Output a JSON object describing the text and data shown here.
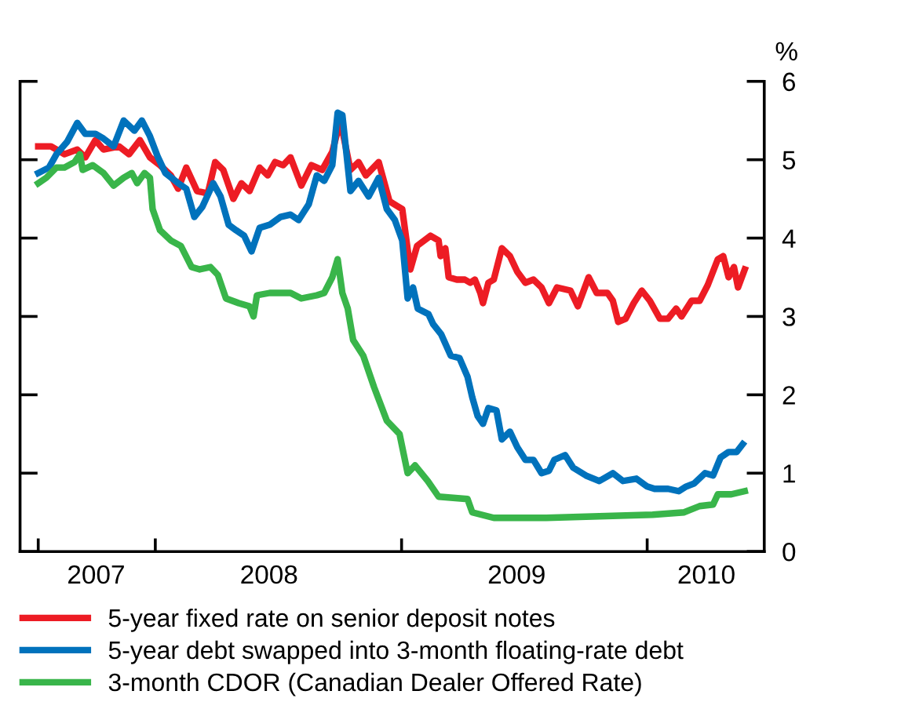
{
  "chart_data": {
    "type": "line",
    "ylabel": "%",
    "xlim": [
      "2007-06-14",
      "2010-06-24"
    ],
    "ylim": [
      0,
      6
    ],
    "yticks": [
      0,
      1,
      2,
      3,
      4,
      5,
      6
    ],
    "xticks": [
      {
        "value": "2007-07-11",
        "label": null
      },
      {
        "value": "2008-01-01",
        "label": null
      },
      {
        "value": "2009-01-01",
        "label": null
      },
      {
        "value": "2010-01-01",
        "label": null
      },
      {
        "value": "2007-10-05",
        "label": "2007"
      },
      {
        "value": "2008-06-18",
        "label": "2008"
      },
      {
        "value": "2009-06-21",
        "label": "2009"
      },
      {
        "value": "2010-03-30",
        "label": "2010"
      }
    ],
    "grid": false,
    "legend": "bottom",
    "marker": "none",
    "line_style": "solid",
    "series": [
      {
        "name": "5-year fixed rate on senior deposit notes",
        "color": "#ed1c24",
        "x": [
          "2007-07-11",
          "2007-07-30",
          "2007-08-19",
          "2007-09-07",
          "2007-09-19",
          "2007-10-04",
          "2007-10-16",
          "2007-11-08",
          "2007-11-23",
          "2007-12-09",
          "2007-12-24",
          "2008-01-08",
          "2008-01-24",
          "2008-02-04",
          "2008-02-16",
          "2008-03-03",
          "2008-03-19",
          "2008-03-30",
          "2008-04-11",
          "2008-04-26",
          "2008-05-08",
          "2008-05-20",
          "2008-06-04",
          "2008-06-16",
          "2008-06-27",
          "2008-07-09",
          "2008-07-20",
          "2008-08-05",
          "2008-08-20",
          "2008-09-05",
          "2008-09-20",
          "2008-10-02",
          "2008-10-17",
          "2008-10-29",
          "2008-11-09",
          "2008-11-28",
          "2008-12-14",
          "2009-01-02",
          "2009-01-14",
          "2009-01-24",
          "2009-02-13",
          "2009-02-25",
          "2009-02-28",
          "2009-03-07",
          "2009-03-12",
          "2009-03-24",
          "2009-04-05",
          "2009-04-13",
          "2009-04-20",
          "2009-04-28",
          "2009-05-02",
          "2009-05-10",
          "2009-05-18",
          "2009-05-30",
          "2009-06-11",
          "2009-06-22",
          "2009-07-04",
          "2009-07-16",
          "2009-07-28",
          "2009-08-08",
          "2009-08-20",
          "2009-09-09",
          "2009-09-20",
          "2009-10-06",
          "2009-10-18",
          "2009-11-03",
          "2009-11-11",
          "2009-11-19",
          "2009-11-30",
          "2009-12-12",
          "2009-12-24",
          "2010-01-05",
          "2010-01-20",
          "2010-02-01",
          "2010-02-13",
          "2010-02-21",
          "2010-03-08",
          "2010-03-20",
          "2010-04-01",
          "2010-04-16",
          "2010-04-24",
          "2010-05-02",
          "2010-05-10",
          "2010-05-16",
          "2010-05-26"
        ],
        "values": [
          5.17,
          5.17,
          5.07,
          5.13,
          5.03,
          5.25,
          5.13,
          5.17,
          5.07,
          5.25,
          5.03,
          4.93,
          4.8,
          4.63,
          4.9,
          4.6,
          4.57,
          4.97,
          4.87,
          4.5,
          4.7,
          4.6,
          4.9,
          4.8,
          4.97,
          4.93,
          5.03,
          4.67,
          4.93,
          4.87,
          5.1,
          5.5,
          4.87,
          4.97,
          4.8,
          4.97,
          4.47,
          4.37,
          3.6,
          3.9,
          4.03,
          3.97,
          3.77,
          3.87,
          3.5,
          3.47,
          3.47,
          3.43,
          3.47,
          3.3,
          3.17,
          3.43,
          3.47,
          3.87,
          3.77,
          3.57,
          3.43,
          3.47,
          3.37,
          3.17,
          3.37,
          3.33,
          3.13,
          3.5,
          3.3,
          3.3,
          3.2,
          2.93,
          2.97,
          3.17,
          3.33,
          3.2,
          2.97,
          2.97,
          3.1,
          3.0,
          3.2,
          3.2,
          3.4,
          3.73,
          3.77,
          3.5,
          3.63,
          3.37,
          3.6
        ]
      },
      {
        "name": "5-year debt swapped into 3-month floating-rate debt",
        "color": "#0072bc",
        "x": [
          "2007-07-11",
          "2007-07-27",
          "2007-08-07",
          "2007-08-23",
          "2007-09-07",
          "2007-09-19",
          "2007-10-04",
          "2007-10-16",
          "2007-10-31",
          "2007-11-15",
          "2007-12-01",
          "2007-12-12",
          "2007-12-24",
          "2008-01-05",
          "2008-01-16",
          "2008-02-04",
          "2008-02-16",
          "2008-02-28",
          "2008-03-11",
          "2008-03-27",
          "2008-04-07",
          "2008-04-19",
          "2008-04-30",
          "2008-05-12",
          "2008-05-23",
          "2008-06-04",
          "2008-06-19",
          "2008-07-05",
          "2008-07-20",
          "2008-08-01",
          "2008-08-16",
          "2008-08-28",
          "2008-09-08",
          "2008-09-20",
          "2008-09-28",
          "2008-10-05",
          "2008-10-17",
          "2008-10-29",
          "2008-11-13",
          "2008-11-28",
          "2008-12-10",
          "2008-12-22",
          "2009-01-02",
          "2009-01-10",
          "2009-01-18",
          "2009-01-25",
          "2009-02-10",
          "2009-02-17",
          "2009-03-01",
          "2009-03-15",
          "2009-03-28",
          "2009-04-09",
          "2009-04-16",
          "2009-04-24",
          "2009-05-02",
          "2009-05-10",
          "2009-05-22",
          "2009-05-30",
          "2009-06-11",
          "2009-06-22",
          "2009-07-04",
          "2009-07-16",
          "2009-07-28",
          "2009-08-08",
          "2009-08-16",
          "2009-09-01",
          "2009-09-13",
          "2009-10-02",
          "2009-10-22",
          "2009-11-11",
          "2009-11-26",
          "2009-12-16",
          "2010-01-01",
          "2010-01-12",
          "2010-02-01",
          "2010-02-17",
          "2010-02-28",
          "2010-03-12",
          "2010-03-28",
          "2010-04-09",
          "2010-04-20",
          "2010-05-02",
          "2010-05-14",
          "2010-05-23"
        ],
        "values": [
          4.83,
          4.9,
          5.07,
          5.23,
          5.47,
          5.33,
          5.33,
          5.27,
          5.17,
          5.5,
          5.37,
          5.5,
          5.3,
          5.03,
          4.83,
          4.7,
          4.63,
          4.27,
          4.4,
          4.7,
          4.53,
          4.17,
          4.1,
          4.03,
          3.83,
          4.13,
          4.17,
          4.27,
          4.3,
          4.23,
          4.43,
          4.8,
          4.73,
          4.93,
          5.6,
          5.57,
          4.6,
          4.73,
          4.53,
          4.77,
          4.37,
          4.23,
          3.97,
          3.23,
          3.37,
          3.1,
          3.03,
          2.9,
          2.77,
          2.5,
          2.47,
          2.23,
          1.97,
          1.73,
          1.63,
          1.83,
          1.8,
          1.43,
          1.53,
          1.33,
          1.17,
          1.17,
          1.0,
          1.03,
          1.17,
          1.23,
          1.07,
          0.97,
          0.9,
          1.0,
          0.9,
          0.93,
          0.83,
          0.8,
          0.8,
          0.77,
          0.83,
          0.87,
          1.0,
          0.97,
          1.2,
          1.27,
          1.27,
          1.37
        ]
      },
      {
        "name": "3-month CDOR (Canadian Dealer Offered Rate)",
        "color": "#39b54a",
        "x": [
          "2007-07-11",
          "2007-07-23",
          "2007-08-07",
          "2007-08-19",
          "2007-09-03",
          "2007-09-11",
          "2007-09-15",
          "2007-09-30",
          "2007-10-16",
          "2007-10-31",
          "2007-11-15",
          "2007-11-27",
          "2007-12-05",
          "2007-12-16",
          "2007-12-24",
          "2007-12-28",
          "2008-01-08",
          "2008-01-24",
          "2008-02-08",
          "2008-02-24",
          "2008-03-07",
          "2008-03-23",
          "2008-04-03",
          "2008-04-15",
          "2008-05-04",
          "2008-05-20",
          "2008-05-26",
          "2008-05-31",
          "2008-06-19",
          "2008-07-20",
          "2008-08-05",
          "2008-08-28",
          "2008-09-08",
          "2008-09-20",
          "2008-09-28",
          "2008-10-05",
          "2008-10-13",
          "2008-10-21",
          "2008-11-05",
          "2008-11-21",
          "2008-12-10",
          "2008-12-29",
          "2009-01-10",
          "2009-01-21",
          "2009-02-09",
          "2009-02-25",
          "2009-04-09",
          "2009-04-16",
          "2009-05-18",
          "2009-08-04",
          "2009-10-22",
          "2010-01-09",
          "2010-02-25",
          "2010-03-20",
          "2010-04-09",
          "2010-04-16",
          "2010-05-06",
          "2010-05-26"
        ],
        "values": [
          4.7,
          4.77,
          4.9,
          4.9,
          4.97,
          5.07,
          4.87,
          4.93,
          4.83,
          4.67,
          4.77,
          4.83,
          4.7,
          4.83,
          4.77,
          4.37,
          4.1,
          3.97,
          3.9,
          3.63,
          3.6,
          3.63,
          3.53,
          3.23,
          3.17,
          3.13,
          3.0,
          3.27,
          3.3,
          3.3,
          3.23,
          3.27,
          3.3,
          3.5,
          3.73,
          3.3,
          3.1,
          2.7,
          2.5,
          2.1,
          1.67,
          1.5,
          1.0,
          1.1,
          0.9,
          0.7,
          0.67,
          0.5,
          0.43,
          0.43,
          0.45,
          0.47,
          0.5,
          0.58,
          0.6,
          0.73,
          0.73,
          0.77
        ]
      }
    ]
  }
}
